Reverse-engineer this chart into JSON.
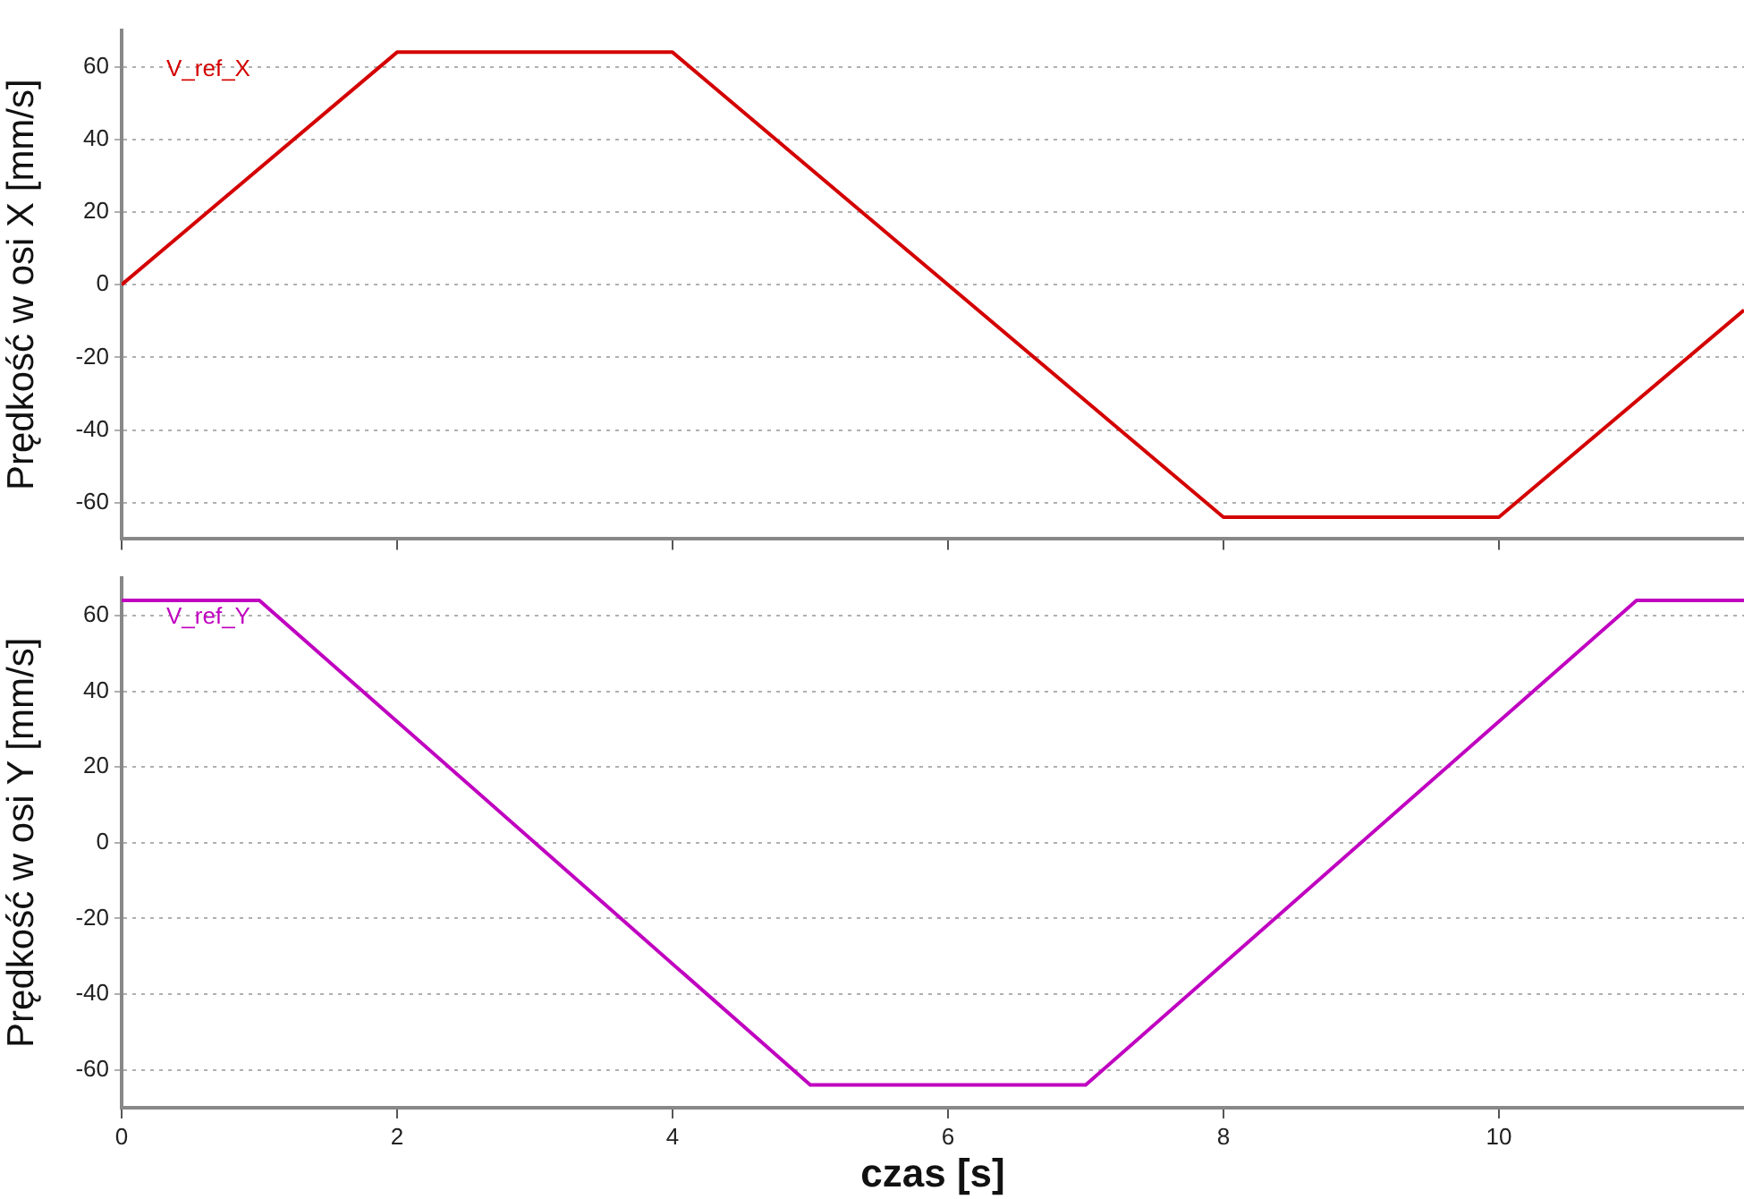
{
  "chart_data": [
    {
      "type": "line",
      "ylabel": "Prędkość w osi X [mm/s]",
      "x": [
        0,
        2,
        4,
        8,
        10,
        11.78
      ],
      "series": [
        {
          "name": "V_ref_X",
          "color": "#d40000",
          "values": [
            0,
            64,
            64,
            -64,
            -64,
            -7
          ]
        }
      ],
      "xlim": [
        0,
        11.78
      ],
      "xticks": [
        0,
        2,
        4,
        6,
        8,
        10
      ],
      "ylim": [
        -70,
        70
      ],
      "yticks": [
        -60,
        -40,
        -20,
        0,
        20,
        40,
        60
      ],
      "tick_labels": "y",
      "grid": true,
      "legend": "top left",
      "marker": "none",
      "line_style": "solid"
    },
    {
      "type": "line",
      "xlabel": "czas [s]",
      "ylabel": "Prędkość w osi Y [mm/s]",
      "x": [
        0,
        1,
        5,
        7,
        11,
        11.78
      ],
      "series": [
        {
          "name": "V_ref_Y",
          "color": "#c000c0",
          "values": [
            64,
            64,
            -64,
            -64,
            64,
            64
          ]
        }
      ],
      "xlim": [
        0,
        11.78
      ],
      "xticks": [
        0,
        2,
        4,
        6,
        8,
        10
      ],
      "ylim": [
        -70,
        70
      ],
      "yticks": [
        -60,
        -40,
        -20,
        0,
        20,
        40,
        60
      ],
      "grid": true,
      "legend": "top left",
      "marker": "none",
      "line_style": "solid"
    }
  ]
}
